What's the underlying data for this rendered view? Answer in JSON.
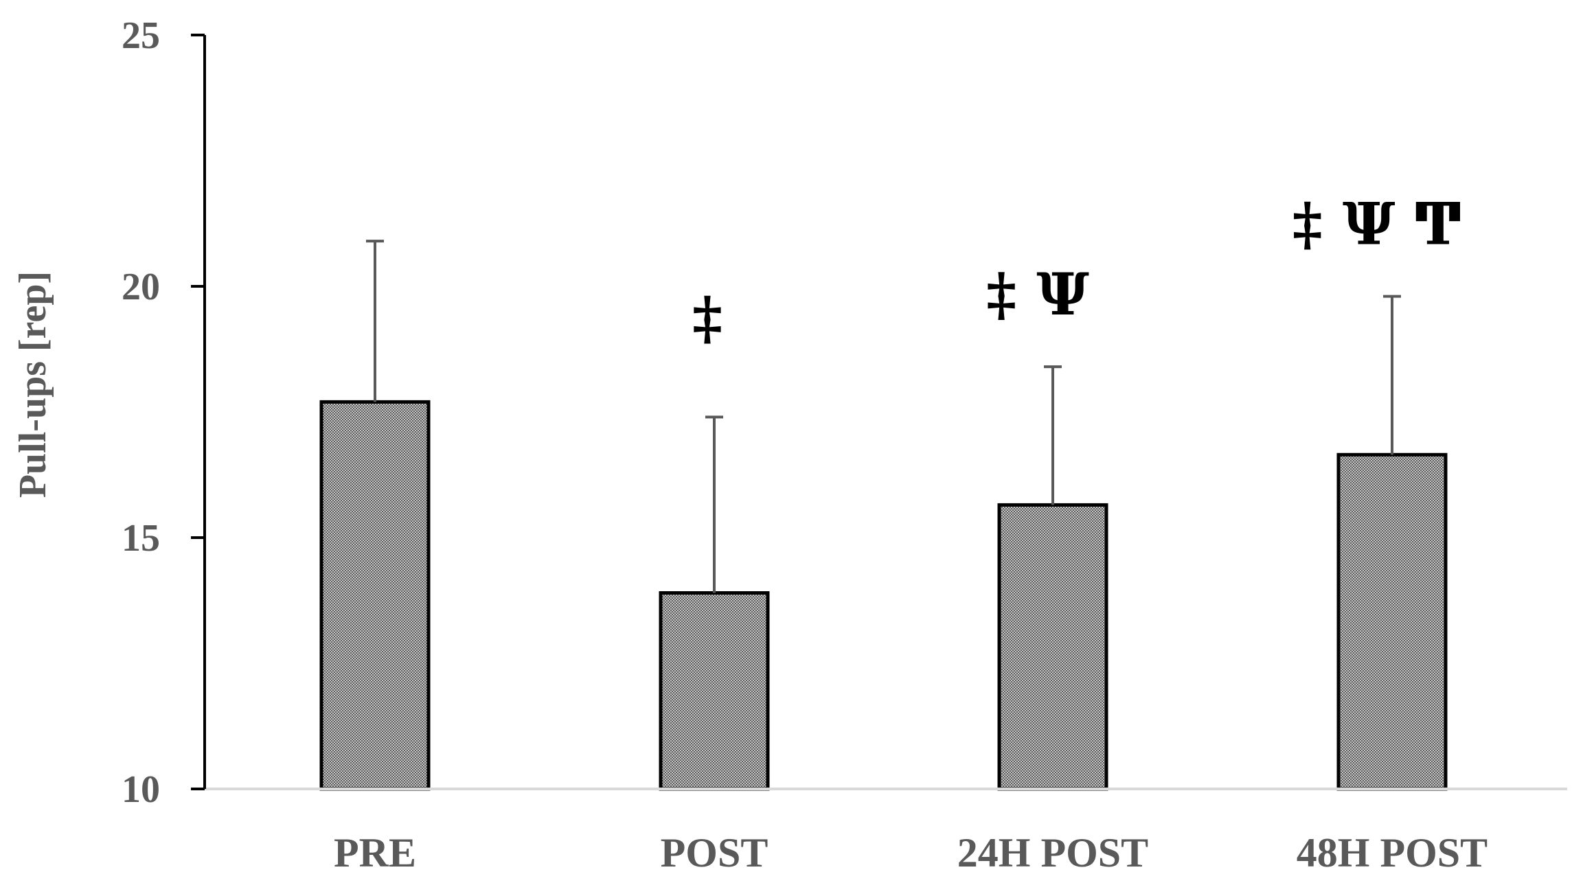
{
  "chart_data": {
    "type": "bar",
    "title": "",
    "xlabel": "",
    "ylabel": "Pull-ups [rep]",
    "ylim": [
      10,
      25
    ],
    "yticks": [
      10,
      15,
      20,
      25
    ],
    "categories": [
      "PRE",
      "POST",
      "24H POST",
      "48H POST"
    ],
    "values": [
      17.7,
      13.9,
      15.65,
      16.65
    ],
    "error_plus": [
      3.2,
      3.5,
      2.75,
      3.15
    ],
    "annotations": [
      "",
      "‡",
      "‡ Ψ",
      "‡ Ψ Ͳ"
    ],
    "grid": false,
    "legend": "none",
    "bar_fill": "#bdbdbd",
    "bar_edge": "#000000",
    "axis_color": "#000000",
    "baseline_color": "#d9d9d9",
    "error_bar_color": "#595959",
    "text_color": "#595959",
    "annotation_color": "#000000"
  }
}
